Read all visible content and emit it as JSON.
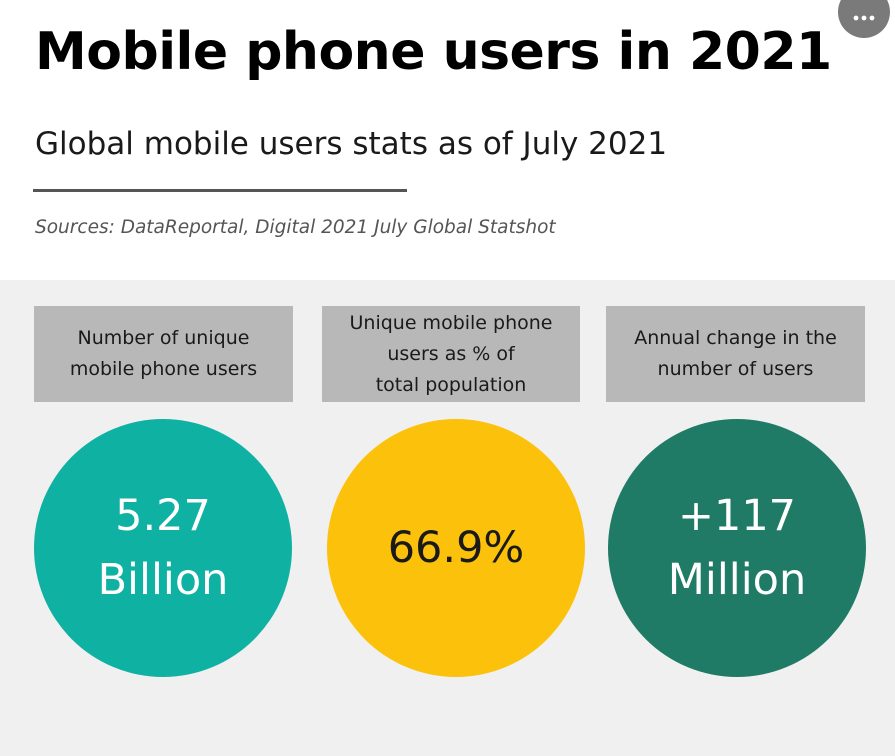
{
  "header": {
    "title": "Mobile phone users in 2021",
    "subtitle": "Global mobile users stats as of July 2021",
    "sources": "Sources: DataReportal, Digital 2021 July Global Statshot"
  },
  "menu": {
    "icon": "more-horizontal-icon"
  },
  "stats": [
    {
      "label": "Number of unique\nmobile phone users",
      "value": "5.27\nBillion",
      "color": "#0fb1a3",
      "text_color": "#ffffff"
    },
    {
      "label": "Unique mobile phone\nusers as % of\ntotal population",
      "value": "66.9%",
      "color": "#fcc10a",
      "text_color": "#1a1a1a"
    },
    {
      "label": "Annual change in the\nnumber of users",
      "value": "+117\nMillion",
      "color": "#1f7a66",
      "text_color": "#ffffff"
    }
  ],
  "colors": {
    "panel_background": "#f0f0f0",
    "label_background": "#b8b8b8",
    "divider": "#555555"
  }
}
